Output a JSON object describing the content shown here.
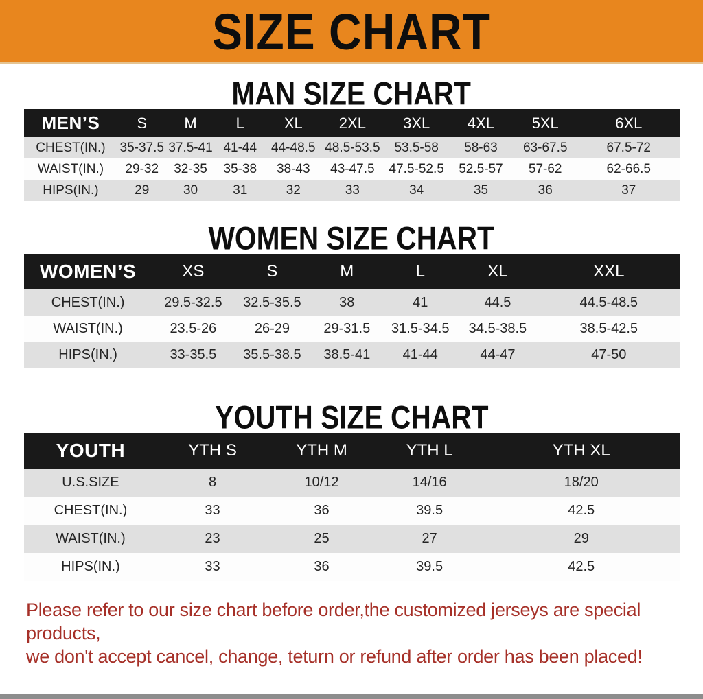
{
  "banner": {
    "title": "SIZE CHART"
  },
  "colors": {
    "banner_bg": "#e8861e",
    "table_header_bg": "#191919",
    "row_alt_gray": "#e0e0e0",
    "disclaimer_red": "#a63028",
    "bottom_bar_gray": "#8d8d8d"
  },
  "tables": [
    {
      "id": "mens",
      "title": "MAN SIZE CHART",
      "header_label": "MEN’S",
      "sizes": [
        "S",
        "M",
        "L",
        "XL",
        "2XL",
        "3XL",
        "4XL",
        "5XL",
        "6XL"
      ],
      "rows": [
        {
          "label": "CHEST(IN.)",
          "values": [
            "35-37.5",
            "37.5-41",
            "41-44",
            "44-48.5",
            "48.5-53.5",
            "53.5-58",
            "58-63",
            "63-67.5",
            "67.5-72"
          ]
        },
        {
          "label": "WAIST(IN.)",
          "values": [
            "29-32",
            "32-35",
            "35-38",
            "38-43",
            "43-47.5",
            "47.5-52.5",
            "52.5-57",
            "57-62",
            "62-66.5"
          ]
        },
        {
          "label": "HIPS(IN.)",
          "values": [
            "29",
            "30",
            "31",
            "32",
            "33",
            "34",
            "35",
            "36",
            "37"
          ]
        }
      ]
    },
    {
      "id": "womens",
      "title": "WOMEN SIZE CHART",
      "header_label": "WOMEN’S",
      "sizes": [
        "XS",
        "S",
        "M",
        "L",
        "XL",
        "XXL"
      ],
      "rows": [
        {
          "label": "CHEST(IN.)",
          "values": [
            "29.5-32.5",
            "32.5-35.5",
            "38",
            "41",
            "44.5",
            "44.5-48.5"
          ]
        },
        {
          "label": "WAIST(IN.)",
          "values": [
            "23.5-26",
            "26-29",
            "29-31.5",
            "31.5-34.5",
            "34.5-38.5",
            "38.5-42.5"
          ]
        },
        {
          "label": "HIPS(IN.)",
          "values": [
            "33-35.5",
            "35.5-38.5",
            "38.5-41",
            "41-44",
            "44-47",
            "47-50"
          ]
        }
      ]
    },
    {
      "id": "youth",
      "title": "YOUTH SIZE CHART",
      "header_label": "YOUTH",
      "sizes": [
        "YTH S",
        "YTH M",
        "YTH L",
        "YTH XL"
      ],
      "rows": [
        {
          "label": "U.S.SIZE",
          "values": [
            "8",
            "10/12",
            "14/16",
            "18/20"
          ]
        },
        {
          "label": "CHEST(IN.)",
          "values": [
            "33",
            "36",
            "39.5",
            "42.5"
          ]
        },
        {
          "label": "WAIST(IN.)",
          "values": [
            "23",
            "25",
            "27",
            "29"
          ]
        },
        {
          "label": "HIPS(IN.)",
          "values": [
            "33",
            "36",
            "39.5",
            "42.5"
          ]
        }
      ]
    }
  ],
  "disclaimer": {
    "line1": "Please refer to our size chart before order,the customized jerseys are special products,",
    "line2": "we don't accept cancel, change, teturn or refund after order has been placed!"
  }
}
